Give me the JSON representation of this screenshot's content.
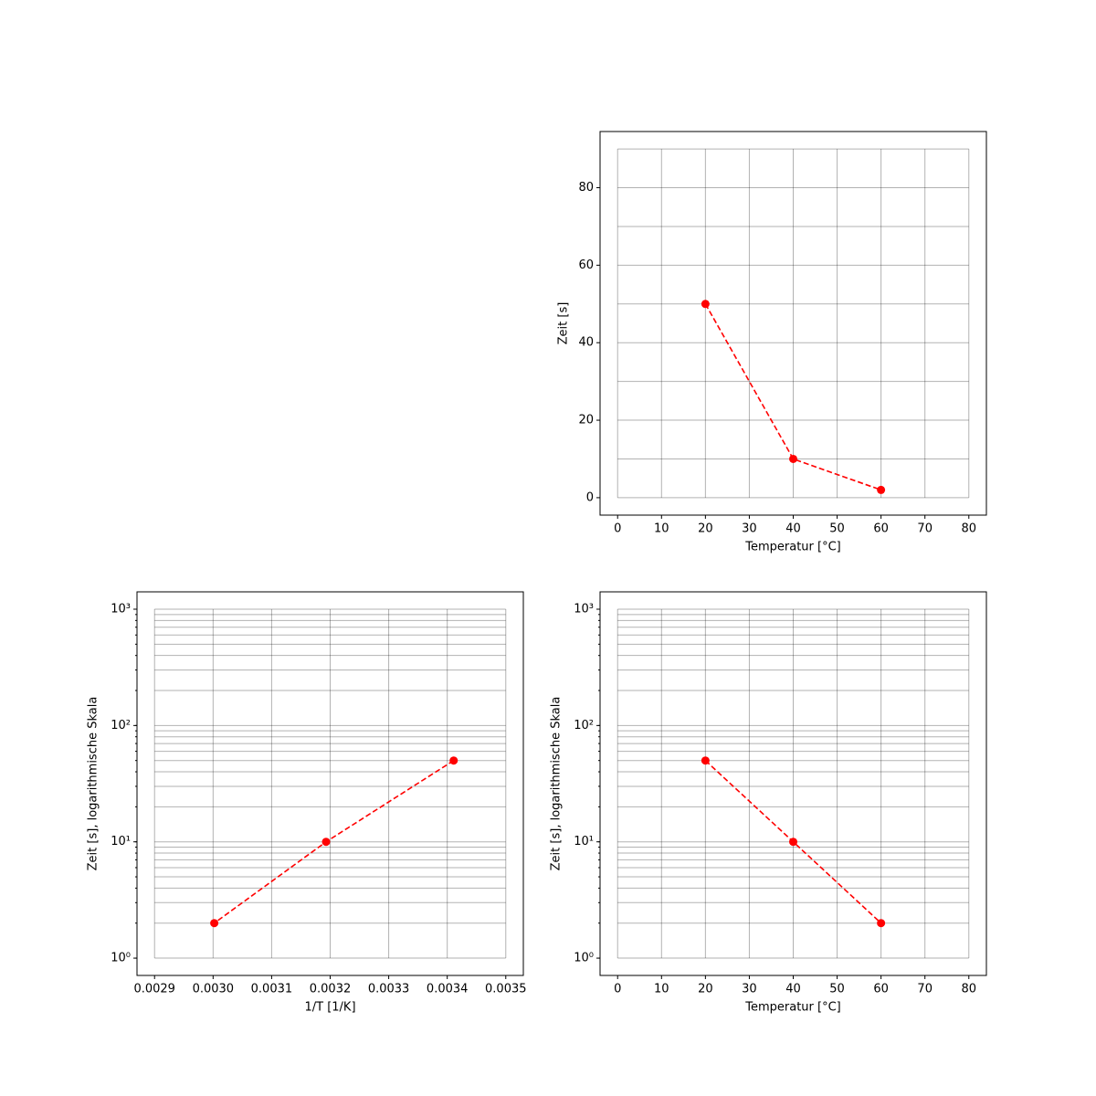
{
  "chart_data": [
    {
      "type": "line",
      "xlabel": "Temperatur [°C]",
      "ylabel": "Zeit [s]",
      "x": [
        20,
        40,
        60
      ],
      "series": [
        {
          "color": "#ff0000",
          "linestyle": "dashed",
          "marker": "circle",
          "values": [
            50,
            10,
            2
          ]
        }
      ],
      "xlim": [
        -4,
        84
      ],
      "ylim": [
        -4.5,
        94.5
      ],
      "xticks": [
        0,
        10,
        20,
        30,
        40,
        50,
        60,
        70,
        80
      ],
      "yticks": [
        0,
        20,
        40,
        60,
        80
      ],
      "grid_x": [
        0,
        10,
        20,
        30,
        40,
        50,
        60,
        70,
        80
      ],
      "grid_y": [
        0,
        10,
        20,
        30,
        40,
        50,
        60,
        70,
        80,
        90
      ]
    },
    {
      "type": "line",
      "xlabel": "1/T [1/K]",
      "ylabel": "Zeit [s], logarithmische Skala",
      "ylog": true,
      "x": [
        0.003411,
        0.003193,
        0.003002
      ],
      "series": [
        {
          "color": "#ff0000",
          "linestyle": "dashed",
          "marker": "circle",
          "values": [
            50,
            10,
            2
          ]
        }
      ],
      "xlim": [
        0.00287,
        0.00353
      ],
      "ylim": [
        0.71,
        1410
      ],
      "xticks": [
        0.0029,
        {
          "value": 0.003,
          "label": "0.0030"
        },
        0.0031,
        0.0032,
        0.0033,
        0.0034,
        0.0035
      ],
      "yticks": [
        {
          "value": 1,
          "label": "10⁰"
        },
        {
          "value": 10,
          "label": "10¹"
        },
        {
          "value": 100,
          "label": "10²"
        },
        {
          "value": 1000,
          "label": "10³"
        }
      ],
      "grid_x": [
        0.0029,
        0.003,
        0.0031,
        0.0032,
        0.0033,
        0.0034,
        0.0035
      ],
      "grid_y": [
        1,
        2,
        3,
        4,
        5,
        6,
        7,
        8,
        9,
        10,
        20,
        30,
        40,
        50,
        60,
        70,
        80,
        90,
        100,
        200,
        300,
        400,
        500,
        600,
        700,
        800,
        900,
        1000
      ]
    },
    {
      "type": "line",
      "xlabel": "Temperatur [°C]",
      "ylabel": "Zeit [s], logarithmische Skala",
      "ylog": true,
      "x": [
        20,
        40,
        60
      ],
      "series": [
        {
          "color": "#ff0000",
          "linestyle": "dashed",
          "marker": "circle",
          "values": [
            50,
            10,
            2
          ]
        }
      ],
      "xlim": [
        -4,
        84
      ],
      "ylim": [
        0.71,
        1410
      ],
      "xticks": [
        0,
        10,
        20,
        30,
        40,
        50,
        60,
        70,
        80
      ],
      "yticks": [
        {
          "value": 1,
          "label": "10⁰"
        },
        {
          "value": 10,
          "label": "10¹"
        },
        {
          "value": 100,
          "label": "10²"
        },
        {
          "value": 1000,
          "label": "10³"
        }
      ],
      "grid_x": [
        0,
        10,
        20,
        30,
        40,
        50,
        60,
        70,
        80
      ],
      "grid_y": [
        1,
        2,
        3,
        4,
        5,
        6,
        7,
        8,
        9,
        10,
        20,
        30,
        40,
        50,
        60,
        70,
        80,
        90,
        100,
        200,
        300,
        400,
        500,
        600,
        700,
        800,
        900,
        1000
      ]
    }
  ]
}
